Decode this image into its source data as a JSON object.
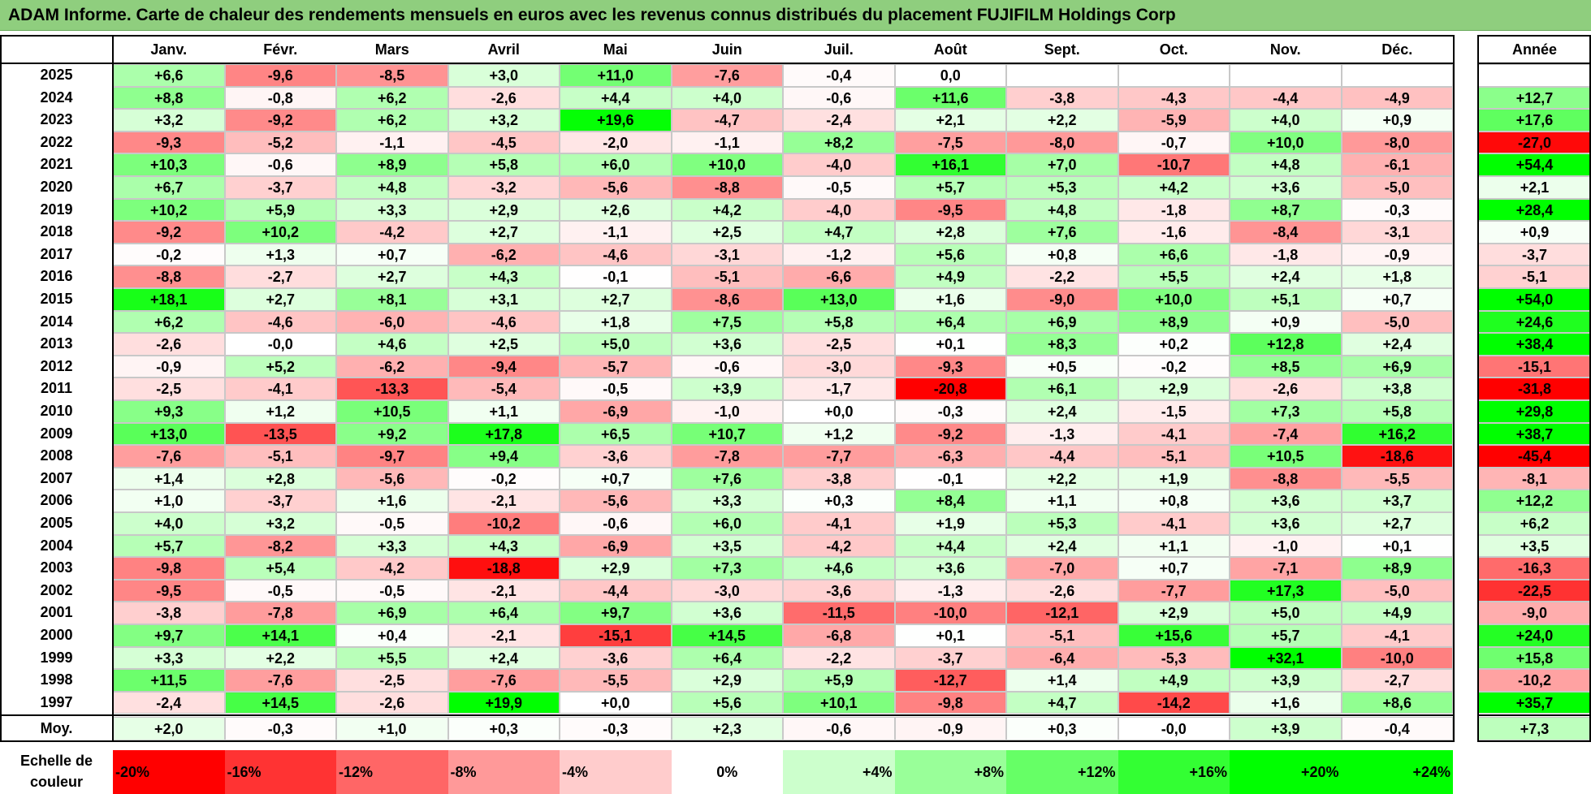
{
  "title": "ADAM Informe. Carte de chaleur des rendements mensuels en euros avec les revenus connus distribués du placement FUJIFILM Holdings Corp",
  "chart_data": {
    "type": "heatmap",
    "months": [
      "Janv.",
      "Févr.",
      "Mars",
      "Avril",
      "Mai",
      "Juin",
      "Juil.",
      "Août",
      "Sept.",
      "Oct.",
      "Nov.",
      "Déc."
    ],
    "year_header": "Année",
    "avg_label": "Moy.",
    "rows": [
      {
        "year": "2025",
        "values": [
          "+6,6",
          "-9,6",
          "-8,5",
          "+3,0",
          "+11,0",
          "-7,6",
          "-0,4",
          "0,0",
          "",
          "",
          "",
          ""
        ],
        "annual": ""
      },
      {
        "year": "2024",
        "values": [
          "+8,8",
          "-0,8",
          "+6,2",
          "-2,6",
          "+4,4",
          "+4,0",
          "-0,6",
          "+11,6",
          "-3,8",
          "-4,3",
          "-4,4",
          "-4,9"
        ],
        "annual": "+12,7"
      },
      {
        "year": "2023",
        "values": [
          "+3,2",
          "-9,2",
          "+6,2",
          "+3,2",
          "+19,6",
          "-4,7",
          "-2,4",
          "+2,1",
          "+2,2",
          "-5,9",
          "+4,0",
          "+0,9"
        ],
        "annual": "+17,6"
      },
      {
        "year": "2022",
        "values": [
          "-9,3",
          "-5,2",
          "-1,1",
          "-4,5",
          "-2,0",
          "-1,1",
          "+8,2",
          "-7,5",
          "-8,0",
          "-0,7",
          "+10,0",
          "-8,0"
        ],
        "annual": "-27,0"
      },
      {
        "year": "2021",
        "values": [
          "+10,3",
          "-0,6",
          "+8,9",
          "+5,8",
          "+6,0",
          "+10,0",
          "-4,0",
          "+16,1",
          "+7,0",
          "-10,7",
          "+4,8",
          "-6,1"
        ],
        "annual": "+54,4"
      },
      {
        "year": "2020",
        "values": [
          "+6,7",
          "-3,7",
          "+4,8",
          "-3,2",
          "-5,6",
          "-8,8",
          "-0,5",
          "+5,7",
          "+5,3",
          "+4,2",
          "+3,6",
          "-5,0"
        ],
        "annual": "+2,1"
      },
      {
        "year": "2019",
        "values": [
          "+10,2",
          "+5,9",
          "+3,3",
          "+2,9",
          "+2,6",
          "+4,2",
          "-4,0",
          "-9,5",
          "+4,8",
          "-1,8",
          "+8,7",
          "-0,3"
        ],
        "annual": "+28,4"
      },
      {
        "year": "2018",
        "values": [
          "-9,2",
          "+10,2",
          "-4,2",
          "+2,7",
          "-1,1",
          "+2,5",
          "+4,7",
          "+2,8",
          "+7,6",
          "-1,6",
          "-8,4",
          "-3,1"
        ],
        "annual": "+0,9"
      },
      {
        "year": "2017",
        "values": [
          "-0,2",
          "+1,3",
          "+0,7",
          "-6,2",
          "-4,6",
          "-3,1",
          "-1,2",
          "+5,6",
          "+0,8",
          "+6,6",
          "-1,8",
          "-0,9"
        ],
        "annual": "-3,7"
      },
      {
        "year": "2016",
        "values": [
          "-8,8",
          "-2,7",
          "+2,7",
          "+4,3",
          "-0,1",
          "-5,1",
          "-6,6",
          "+4,9",
          "-2,2",
          "+5,5",
          "+2,4",
          "+1,8"
        ],
        "annual": "-5,1"
      },
      {
        "year": "2015",
        "values": [
          "+18,1",
          "+2,7",
          "+8,1",
          "+3,1",
          "+2,7",
          "-8,6",
          "+13,0",
          "+1,6",
          "-9,0",
          "+10,0",
          "+5,1",
          "+0,7"
        ],
        "annual": "+54,0"
      },
      {
        "year": "2014",
        "values": [
          "+6,2",
          "-4,6",
          "-6,0",
          "-4,6",
          "+1,8",
          "+7,5",
          "+5,8",
          "+6,4",
          "+6,9",
          "+8,9",
          "+0,9",
          "-5,0"
        ],
        "annual": "+24,6"
      },
      {
        "year": "2013",
        "values": [
          "-2,6",
          "-0,0",
          "+4,6",
          "+2,5",
          "+5,0",
          "+3,6",
          "-2,5",
          "+0,1",
          "+8,3",
          "+0,2",
          "+12,8",
          "+2,4"
        ],
        "annual": "+38,4"
      },
      {
        "year": "2012",
        "values": [
          "-0,9",
          "+5,2",
          "-6,2",
          "-9,4",
          "-5,7",
          "-0,6",
          "-3,0",
          "-9,3",
          "+0,5",
          "-0,2",
          "+8,5",
          "+6,9"
        ],
        "annual": "-15,1"
      },
      {
        "year": "2011",
        "values": [
          "-2,5",
          "-4,1",
          "-13,3",
          "-5,4",
          "-0,5",
          "+3,9",
          "-1,7",
          "-20,8",
          "+6,1",
          "+2,9",
          "-2,6",
          "+3,8"
        ],
        "annual": "-31,8"
      },
      {
        "year": "2010",
        "values": [
          "+9,3",
          "+1,2",
          "+10,5",
          "+1,1",
          "-6,9",
          "-1,0",
          "+0,0",
          "-0,3",
          "+2,4",
          "-1,5",
          "+7,3",
          "+5,8"
        ],
        "annual": "+29,8"
      },
      {
        "year": "2009",
        "values": [
          "+13,0",
          "-13,5",
          "+9,2",
          "+17,8",
          "+6,5",
          "+10,7",
          "+1,2",
          "-9,2",
          "-1,3",
          "-4,1",
          "-7,4",
          "+16,2"
        ],
        "annual": "+38,7"
      },
      {
        "year": "2008",
        "values": [
          "-7,6",
          "-5,1",
          "-9,7",
          "+9,4",
          "-3,6",
          "-7,8",
          "-7,7",
          "-6,3",
          "-4,4",
          "-5,1",
          "+10,5",
          "-18,6"
        ],
        "annual": "-45,4"
      },
      {
        "year": "2007",
        "values": [
          "+1,4",
          "+2,8",
          "-5,6",
          "-0,2",
          "+0,7",
          "+7,6",
          "-3,8",
          "-0,1",
          "+2,2",
          "+1,9",
          "-8,8",
          "-5,5"
        ],
        "annual": "-8,1"
      },
      {
        "year": "2006",
        "values": [
          "+1,0",
          "-3,7",
          "+1,6",
          "-2,1",
          "-5,6",
          "+3,3",
          "+0,3",
          "+8,4",
          "+1,1",
          "+0,8",
          "+3,6",
          "+3,7"
        ],
        "annual": "+12,2"
      },
      {
        "year": "2005",
        "values": [
          "+4,0",
          "+3,2",
          "-0,5",
          "-10,2",
          "-0,6",
          "+6,0",
          "-4,1",
          "+1,9",
          "+5,3",
          "-4,1",
          "+3,6",
          "+2,7"
        ],
        "annual": "+6,2"
      },
      {
        "year": "2004",
        "values": [
          "+5,7",
          "-8,2",
          "+3,3",
          "+4,3",
          "-6,9",
          "+3,5",
          "-4,2",
          "+4,4",
          "+2,4",
          "+1,1",
          "-1,0",
          "+0,1"
        ],
        "annual": "+3,5"
      },
      {
        "year": "2003",
        "values": [
          "-9,8",
          "+5,4",
          "-4,2",
          "-18,8",
          "+2,9",
          "+7,3",
          "+4,6",
          "+3,6",
          "-7,0",
          "+0,7",
          "-7,1",
          "+8,9"
        ],
        "annual": "-16,3"
      },
      {
        "year": "2002",
        "values": [
          "-9,5",
          "-0,5",
          "-0,5",
          "-2,1",
          "-4,4",
          "-3,0",
          "-3,6",
          "-1,3",
          "-2,6",
          "-7,7",
          "+17,3",
          "-5,0"
        ],
        "annual": "-22,5"
      },
      {
        "year": "2001",
        "values": [
          "-3,8",
          "-7,8",
          "+6,9",
          "+6,4",
          "+9,7",
          "+3,6",
          "-11,5",
          "-10,0",
          "-12,1",
          "+2,9",
          "+5,0",
          "+4,9"
        ],
        "annual": "-9,0"
      },
      {
        "year": "2000",
        "values": [
          "+9,7",
          "+14,1",
          "+0,4",
          "-2,1",
          "-15,1",
          "+14,5",
          "-6,8",
          "+0,1",
          "-5,1",
          "+15,6",
          "+5,7",
          "-4,1"
        ],
        "annual": "+24,0"
      },
      {
        "year": "1999",
        "values": [
          "+3,3",
          "+2,2",
          "+5,5",
          "+2,4",
          "-3,6",
          "+6,4",
          "-2,2",
          "-3,7",
          "-6,4",
          "-5,3",
          "+32,1",
          "-10,0"
        ],
        "annual": "+15,8"
      },
      {
        "year": "1998",
        "values": [
          "+11,5",
          "-7,6",
          "-2,5",
          "-7,6",
          "-5,5",
          "+2,9",
          "+5,9",
          "-12,7",
          "+1,4",
          "+4,9",
          "+3,9",
          "-2,7"
        ],
        "annual": "-10,2"
      },
      {
        "year": "1997",
        "values": [
          "-2,4",
          "+14,5",
          "-2,6",
          "+19,9",
          "+0,0",
          "+5,6",
          "+10,1",
          "-9,8",
          "+4,7",
          "-14,2",
          "+1,6",
          "+8,6"
        ],
        "annual": "+35,7"
      }
    ],
    "averages": [
      "+2,0",
      "-0,3",
      "+1,0",
      "+0,3",
      "-0,3",
      "+2,3",
      "-0,6",
      "-0,9",
      "+0,3",
      "-0,0",
      "+3,9",
      "-0,4"
    ],
    "average_annual": "+7,3",
    "scale_label": "Echelle de couleur",
    "scale": [
      {
        "label": "-20%",
        "value": -20
      },
      {
        "label": "-16%",
        "value": -16
      },
      {
        "label": "-12%",
        "value": -12
      },
      {
        "label": "-8%",
        "value": -8
      },
      {
        "label": "-4%",
        "value": -4
      },
      {
        "label": "0%",
        "value": 0
      },
      {
        "label": "+4%",
        "value": 4
      },
      {
        "label": "+8%",
        "value": 8
      },
      {
        "label": "+12%",
        "value": 12
      },
      {
        "label": "+16%",
        "value": 16
      },
      {
        "label": "+20%",
        "value": 20
      },
      {
        "label": "+24%",
        "value": 24
      }
    ],
    "colors": {
      "negative_max": "#ff0000",
      "neutral": "#ffffff",
      "positive_max": "#00ff00"
    }
  }
}
